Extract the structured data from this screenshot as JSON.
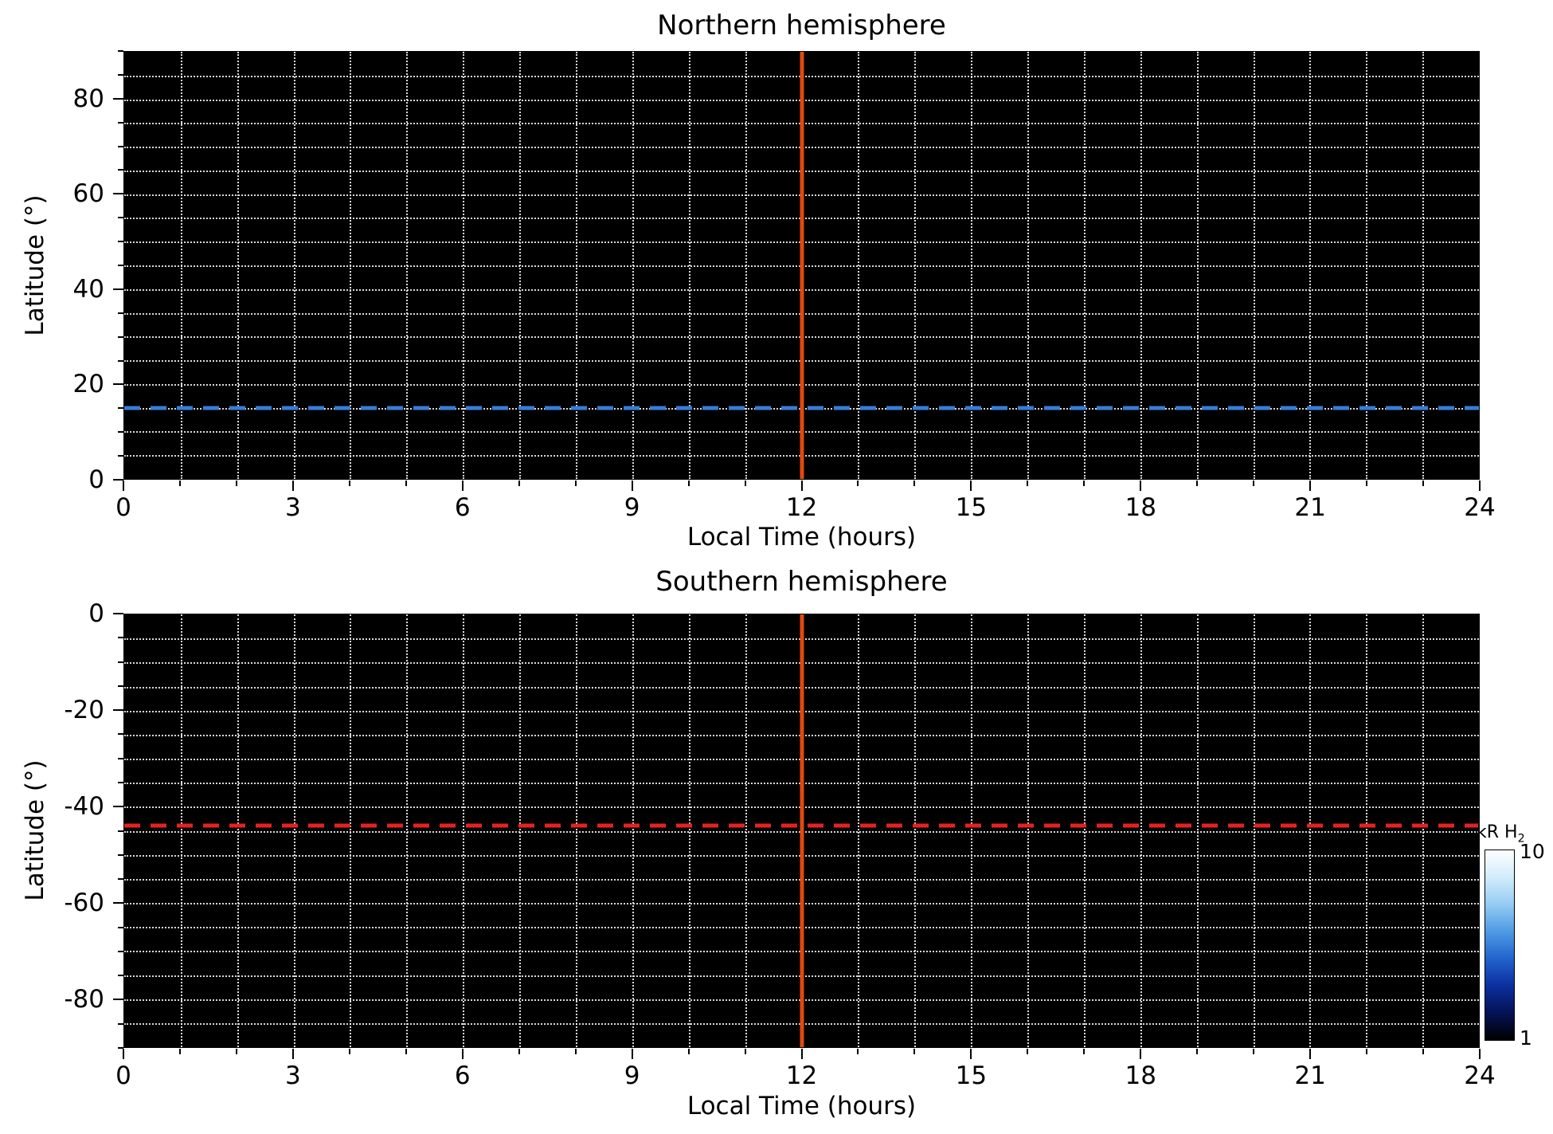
{
  "figure": {
    "background": "#ffffff",
    "plot_background": "#000000",
    "grid_color": "#ffffff",
    "colorbar": {
      "label": "kR H",
      "label_sub": "2",
      "tick_top": "10",
      "tick_bottom": "1",
      "range": [
        1,
        10
      ],
      "gradient": [
        "#ffffff",
        "#d2ecfb",
        "#94cbf2",
        "#4f9ae4",
        "#2263cc",
        "#0c2f9e",
        "#041256",
        "#000000"
      ]
    }
  },
  "chart_data": [
    {
      "type": "heatmap",
      "title": "Northern hemisphere",
      "xlabel": "Local Time (hours)",
      "ylabel": "Latitude (°)",
      "xlim": [
        0,
        24
      ],
      "ylim": [
        0,
        90
      ],
      "xticks": [
        0,
        3,
        6,
        9,
        12,
        15,
        18,
        21,
        24
      ],
      "yticks": [
        0,
        20,
        40,
        60,
        80
      ],
      "x_minor_step": 1,
      "y_minor_step": 5,
      "uniform_field_color": "#000000",
      "vline": {
        "x": 12,
        "color": "#e04a10",
        "style": "solid"
      },
      "hline": {
        "y": 15,
        "color": "#3a7bd5",
        "style": "dashed"
      }
    },
    {
      "type": "heatmap",
      "title": "Southern hemisphere",
      "xlabel": "Local Time (hours)",
      "ylabel": "Latitude (°)",
      "xlim": [
        0,
        24
      ],
      "ylim": [
        -90,
        0
      ],
      "xticks": [
        0,
        3,
        6,
        9,
        12,
        15,
        18,
        21,
        24
      ],
      "yticks": [
        0,
        -20,
        -40,
        -60,
        -80
      ],
      "x_minor_step": 1,
      "y_minor_step": 5,
      "uniform_field_color": "#000000",
      "vline": {
        "x": 12,
        "color": "#e04a10",
        "style": "solid"
      },
      "hline": {
        "y": -44,
        "color": "#e32222",
        "style": "dashed"
      }
    }
  ]
}
